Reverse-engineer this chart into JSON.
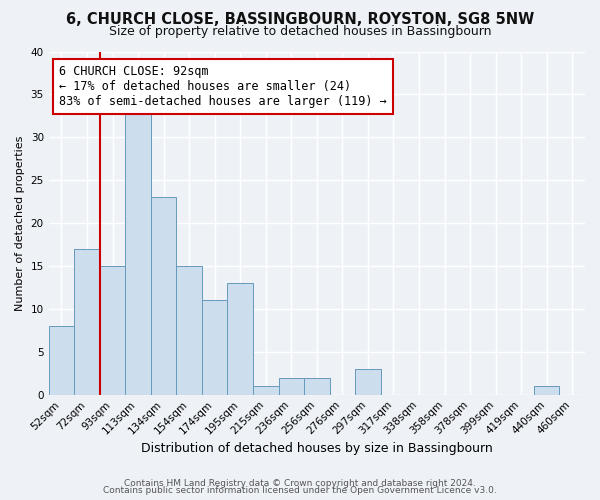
{
  "title": "6, CHURCH CLOSE, BASSINGBOURN, ROYSTON, SG8 5NW",
  "subtitle": "Size of property relative to detached houses in Bassingbourn",
  "xlabel": "Distribution of detached houses by size in Bassingbourn",
  "ylabel": "Number of detached properties",
  "bar_color": "#ccdded",
  "bar_edge_color": "#6699bb",
  "categories": [
    "52sqm",
    "72sqm",
    "93sqm",
    "113sqm",
    "134sqm",
    "154sqm",
    "174sqm",
    "195sqm",
    "215sqm",
    "236sqm",
    "256sqm",
    "276sqm",
    "297sqm",
    "317sqm",
    "338sqm",
    "358sqm",
    "378sqm",
    "399sqm",
    "419sqm",
    "440sqm",
    "460sqm"
  ],
  "values": [
    8,
    17,
    15,
    33,
    23,
    15,
    11,
    13,
    1,
    2,
    2,
    0,
    3,
    0,
    0,
    0,
    0,
    0,
    0,
    1,
    0
  ],
  "ylim": [
    0,
    40
  ],
  "yticks": [
    0,
    5,
    10,
    15,
    20,
    25,
    30,
    35,
    40
  ],
  "vline_index": 2,
  "vline_color": "#cc0000",
  "annotation_title": "6 CHURCH CLOSE: 92sqm",
  "annotation_line1": "← 17% of detached houses are smaller (24)",
  "annotation_line2": "83% of semi-detached houses are larger (119) →",
  "annotation_box_color": "#ffffff",
  "annotation_box_edge": "#cc0000",
  "footer1": "Contains HM Land Registry data © Crown copyright and database right 2024.",
  "footer2": "Contains public sector information licensed under the Open Government Licence v3.0.",
  "background_color": "#eef2f7",
  "grid_color": "#ffffff",
  "title_fontsize": 10.5,
  "subtitle_fontsize": 9,
  "xlabel_fontsize": 9,
  "ylabel_fontsize": 8,
  "tick_fontsize": 7.5,
  "footer_fontsize": 6.5,
  "ann_fontsize": 8.5
}
